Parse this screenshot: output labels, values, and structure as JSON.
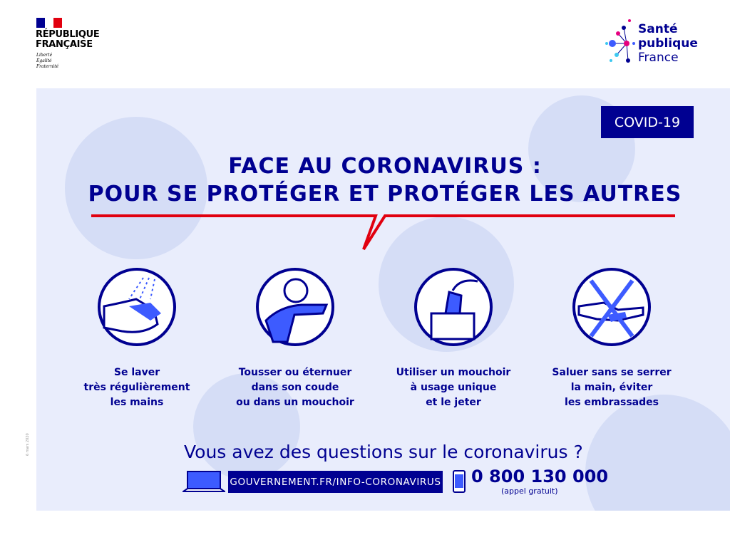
{
  "header": {
    "gov_logo": {
      "line1": "RÉPUBLIQUE",
      "line2": "FRANÇAISE",
      "motto": [
        "Liberté",
        "Égalité",
        "Fraternité"
      ]
    },
    "spf_logo": {
      "line1": "Santé",
      "line2": "publique",
      "line3": "France"
    }
  },
  "badge": "COVID-19",
  "title": {
    "line1": "FACE AU CORONAVIRUS :",
    "line2": "POUR SE PROTÉGER ET PROTÉGER LES AUTRES"
  },
  "gestures": [
    {
      "icon": "hand-washing-icon",
      "lines": [
        "Se laver",
        "très régulièrement",
        "les mains"
      ]
    },
    {
      "icon": "cough-in-elbow-icon",
      "lines": [
        "Tousser ou éternuer",
        "dans son coude",
        "ou dans un mouchoir"
      ]
    },
    {
      "icon": "tissue-box-icon",
      "lines": [
        "Utiliser un mouchoir",
        "à usage unique",
        "et le jeter"
      ]
    },
    {
      "icon": "no-handshake-icon",
      "lines": [
        "Saluer sans se serrer",
        "la main, éviter",
        "les embrassades"
      ]
    }
  ],
  "footer": {
    "question": "Vous avez des questions sur le coronavirus ?",
    "url": "GOUVERNEMENT.FR/INFO-CORONAVIRUS",
    "phone": "0 800 130 000",
    "phone_note": "(appel gratuit)",
    "ref": "6 mars 2020"
  },
  "colors": {
    "navy": "#000091",
    "red": "#e1000f",
    "blue": "#3d5bff",
    "background": "#e9edfc"
  }
}
